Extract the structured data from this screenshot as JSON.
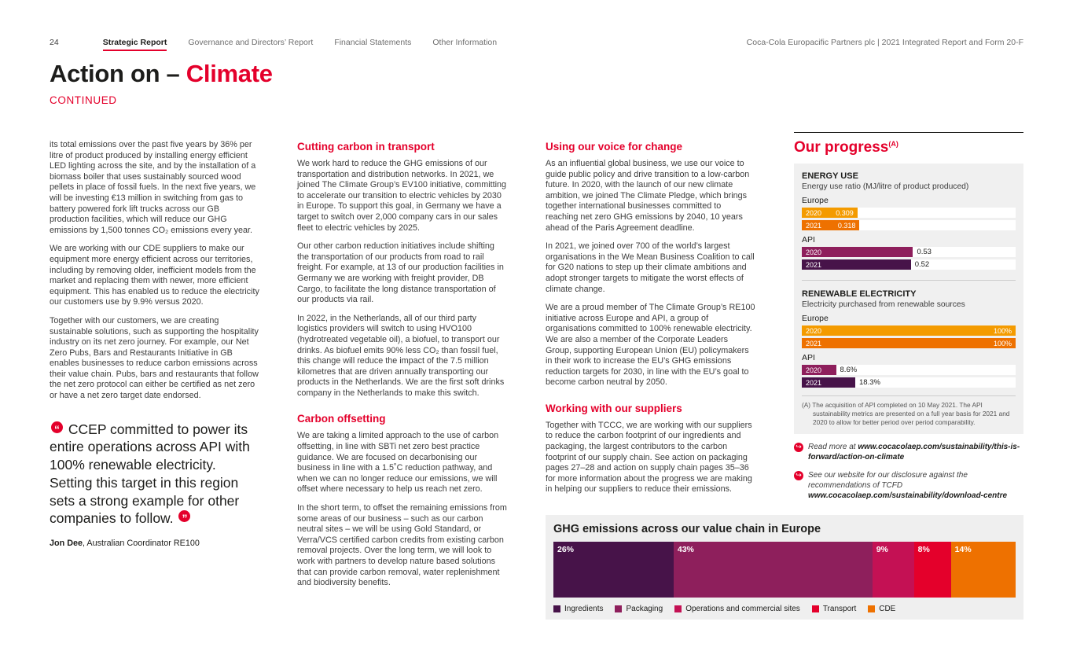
{
  "colors": {
    "accent_red": "#e4002b",
    "dark_text": "#1d1d1b",
    "panel_gray": "#f0f0f0"
  },
  "icons": {
    "open_quote": "“",
    "close_quote": "”",
    "link_arrow": "↪"
  },
  "header": {
    "page_number": "24",
    "nav": [
      {
        "label": "Strategic Report"
      },
      {
        "label": "Governance and Directors’ Report"
      },
      {
        "label": "Financial Statements"
      },
      {
        "label": "Other Information"
      }
    ],
    "right": "Coca-Cola Europacific Partners plc | 2021 Integrated Report and Form 20-F"
  },
  "title": {
    "prefix": "Action on – ",
    "highlight": "Climate",
    "continued": "CONTINUED"
  },
  "col1": {
    "p1": "its total emissions over the past five years by 36% per litre of product produced by installing energy efficient LED lighting across the site, and by the installation of a biomass boiler that uses sustainably sourced wood pellets in place of fossil fuels. In the next five years, we will be investing €13 million in switching from gas to battery powered fork lift trucks across our GB production facilities, which will reduce our GHG emissions by 1,500 tonnes CO₂ emissions every year.",
    "p2": "We are working with our CDE suppliers to make our equipment more energy efficient across our territories, including by removing older, inefficient models from the market and replacing them with newer, more efficient equipment. This has enabled us to reduce the electricity our customers use by 9.9% versus 2020.",
    "p3": "Together with our customers, we are creating sustainable solutions, such as supporting the hospitality industry on its net zero journey. For example, our Net Zero Pubs, Bars and Restaurants Initiative in GB enables businesses to reduce carbon emissions across their value chain. Pubs, bars and restaurants that follow the net zero protocol can either be certified as net zero or have a net zero target date endorsed.",
    "quote": "CCEP committed to power its entire operations across API with 100% renewable electricity. Setting this target in this region sets a strong example for other companies to follow.",
    "attribution_name": "Jon Dee",
    "attribution_role": ", Australian Coordinator RE100"
  },
  "col2": {
    "h1": "Cutting carbon in transport",
    "p1": "We work hard to reduce the GHG emissions of our transportation and distribution networks. In 2021, we joined The Climate Group’s EV100 initiative, committing to accelerate our transition to electric vehicles by 2030 in Europe. To support this goal, in Germany we have a target to switch over 2,000 company cars in our sales fleet to electric vehicles by 2025.",
    "p2": "Our other carbon reduction initiatives include shifting the transportation of our products from road to rail freight. For example, at 13 of our production facilities in Germany we are working with freight provider, DB Cargo, to facilitate the long distance transportation of our products via rail.",
    "p3": "In 2022, in the Netherlands, all of our third party logistics providers will switch to using HVO100 (hydrotreated vegetable oil), a biofuel, to transport our drinks. As biofuel emits 90% less CO₂ than fossil fuel, this change will reduce the impact of the 7.5 million kilometres that are driven annually transporting our products in the Netherlands. We are the first soft drinks company in the Netherlands to make this switch.",
    "h2": "Carbon offsetting",
    "p4": "We are taking a limited approach to the use of carbon offsetting, in line with SBTi net zero best practice guidance. We are focused on decarbonising our business in line with a 1.5˚C reduction pathway, and when we can no longer reduce our emissions, we will offset where necessary to help us reach net zero.",
    "p5": "In the short term, to offset the remaining emissions from some areas of our business – such as our carbon neutral sites – we will be using Gold Standard, or Verra/VCS certified carbon credits from existing carbon removal projects. Over the long term, we will look to work with partners to develop nature based solutions that can provide carbon removal, water replenishment and biodiversity benefits."
  },
  "col3": {
    "h1": "Using our voice for change",
    "p1": "As an influential global business, we use our voice to guide public policy and drive transition to a low-carbon future. In 2020, with the launch of our new climate ambition, we joined The Climate Pledge, which brings together international businesses committed to reaching net zero GHG emissions by 2040, 10 years ahead of the Paris Agreement deadline.",
    "p2": "In 2021, we joined over 700 of the world’s largest organisations in the We Mean Business Coalition to call for G20 nations to step up their climate ambitions and adopt stronger targets to mitigate the worst effects of climate change.",
    "p3": "We are a proud member of The Climate Group’s RE100 initiative across Europe and API, a group of organisations committed to 100% renewable electricity. We are also a member of the Corporate Leaders Group, supporting European Union (EU) policymakers in their work to increase the EU’s GHG emissions reduction targets for 2030, in line with the EU’s goal to become carbon neutral by 2050.",
    "h2": "Working with our suppliers",
    "p4": "Together with TCCC, we are working with our suppliers to reduce the carbon footprint of our ingredients and packaging, the largest contributors to the carbon footprint of our supply chain. See action on packaging pages 27–28 and action on supply chain pages 35–36 for more information about the progress we are making in helping our suppliers to reduce their emissions."
  },
  "progress": {
    "title": "Our progress",
    "title_note": "(A)",
    "sections": [
      {
        "heading": "ENERGY USE",
        "subtitle": "Energy use ratio (MJ/litre of product produced)",
        "groups": [
          {
            "label": "Europe",
            "bars": [
              {
                "year": "2020",
                "value": "0.309",
                "pct": 26,
                "color": "#f49b00"
              },
              {
                "year": "2021",
                "value": "0.318",
                "pct": 27,
                "color": "#ee7100"
              }
            ]
          },
          {
            "label": "API",
            "bars": [
              {
                "year": "2020",
                "value": "0.53",
                "pct": 52,
                "color": "#8e1f5c"
              },
              {
                "year": "2021",
                "value": "0.52",
                "pct": 51,
                "color": "#471349"
              }
            ]
          }
        ]
      },
      {
        "heading": "RENEWABLE ELECTRICITY",
        "subtitle": "Electricity purchased from renewable sources",
        "groups": [
          {
            "label": "Europe",
            "bars": [
              {
                "year": "2020",
                "value": "100%",
                "pct": 100,
                "color": "#f49b00"
              },
              {
                "year": "2021",
                "value": "100%",
                "pct": 100,
                "color": "#ee7100"
              }
            ]
          },
          {
            "label": "API",
            "bars": [
              {
                "year": "2020",
                "value": "8.6%",
                "pct": 16,
                "color": "#8e1f5c"
              },
              {
                "year": "2021",
                "value": "18.3%",
                "pct": 25,
                "color": "#471349"
              }
            ]
          }
        ]
      }
    ],
    "footnote": "(A) The acquisition of API completed on 10 May 2021. The API sustainability metrics are presented on a full year basis for 2021 and 2020 to allow for better period over period comparability.",
    "links": [
      {
        "text": "Read more at ",
        "url": "www.cocacolaep.com/sustainability/this-is-forward/action-on-climate"
      },
      {
        "text": "See our website for our disclosure against the recommendations of TCFD ",
        "url": "www.cocacolaep.com/sustainability/download-centre"
      }
    ]
  },
  "chart_data": {
    "type": "bar",
    "stacked": true,
    "title": "GHG emissions across our value chain in Europe",
    "unit": "%",
    "legend_position": "bottom",
    "segments": [
      {
        "label": "Ingredients",
        "value": 26,
        "display": "26%",
        "color": "#471349"
      },
      {
        "label": "Packaging",
        "value": 43,
        "display": "43%",
        "color": "#8e1f5c"
      },
      {
        "label": "Operations and commercial sites",
        "value": 9,
        "display": "9%",
        "color": "#c41154"
      },
      {
        "label": "Transport",
        "value": 8,
        "display": "8%",
        "color": "#e4002b"
      },
      {
        "label": "CDE",
        "value": 14,
        "display": "14%",
        "color": "#ee7100"
      }
    ]
  }
}
